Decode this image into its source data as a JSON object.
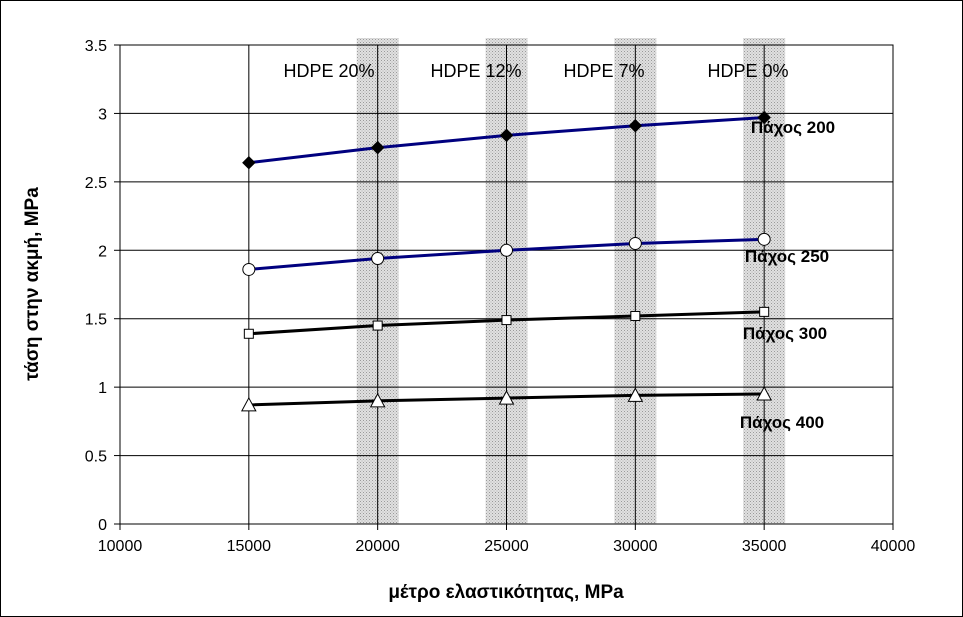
{
  "chart_data": {
    "type": "line",
    "title": "",
    "xlabel": "μέτρο ελαστικότητας, MPa",
    "ylabel": "τάση στην ακμή, MPa",
    "xlim": [
      10000,
      40000
    ],
    "ylim": [
      0,
      3.5
    ],
    "xticks": [
      "10000",
      "15000",
      "20000",
      "25000",
      "30000",
      "35000",
      "40000"
    ],
    "yticks": [
      "0",
      "0.5",
      "1",
      "1.5",
      "2",
      "2.5",
      "3",
      "3.5"
    ],
    "grid": true,
    "x": [
      15000,
      20000,
      25000,
      30000,
      35000
    ],
    "bands": [
      {
        "x": 20000,
        "label": "HDPE 20%"
      },
      {
        "x": 25000,
        "label": "HDPE 12%"
      },
      {
        "x": 30000,
        "label": "HDPE 7%"
      },
      {
        "x": 35000,
        "label": "HDPE 0%"
      }
    ],
    "series": [
      {
        "name": "Πάχος 200",
        "values": [
          2.64,
          2.75,
          2.84,
          2.91,
          2.97
        ],
        "color": "#00007f",
        "marker": "diamond-filled"
      },
      {
        "name": "Πάχος 250",
        "values": [
          1.86,
          1.94,
          2.0,
          2.05,
          2.08
        ],
        "color": "#00007f",
        "marker": "circle-open"
      },
      {
        "name": "Πάχος 300",
        "values": [
          1.39,
          1.45,
          1.49,
          1.52,
          1.55
        ],
        "color": "#000000",
        "marker": "square-open"
      },
      {
        "name": "Πάχος 400",
        "values": [
          0.87,
          0.9,
          0.92,
          0.94,
          0.95
        ],
        "color": "#000000",
        "marker": "triangle-open"
      }
    ]
  }
}
